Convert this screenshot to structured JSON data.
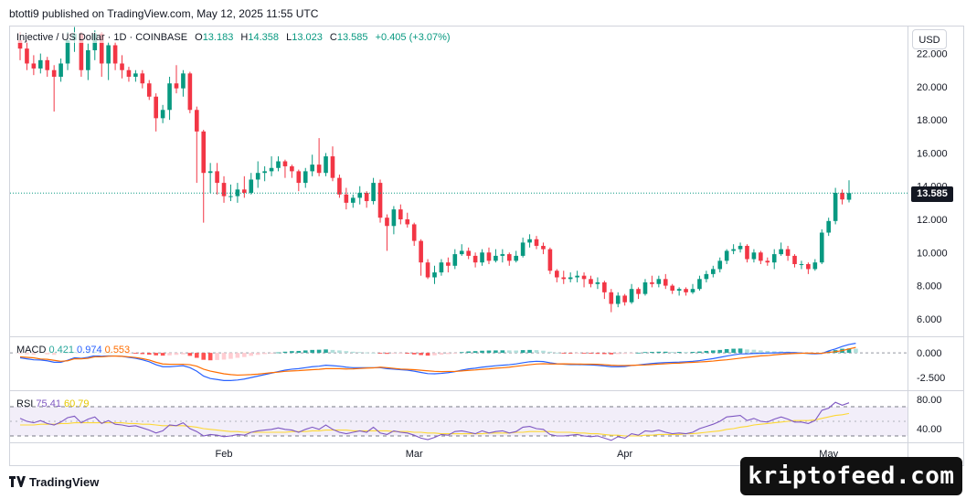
{
  "header": {
    "published": "btotti9 published on TradingView.com, May 12, 2025 11:55 UTC"
  },
  "legend": {
    "symbol": "Injective / US Dollar · 1D · COINBASE",
    "open_label": "O",
    "open": "13.183",
    "high_label": "H",
    "high": "14.358",
    "low_label": "L",
    "low": "13.023",
    "close_label": "C",
    "close": "13.585",
    "change": "+0.405 (+3.07%)"
  },
  "currency_button": "USD",
  "last_price": "13.585",
  "macd_legend": {
    "label": "MACD",
    "hist": "0.421",
    "macd": "0.974",
    "signal": "0.553"
  },
  "rsi_legend": {
    "label": "RSI",
    "rsi": "75.41",
    "ma": "60.79"
  },
  "footer": {
    "brand": "TradingView",
    "watermark": "kriptofeed.com"
  },
  "colors": {
    "up": "#089981",
    "down": "#f23645",
    "macd_line": "#2962ff",
    "signal_line": "#ff6d00",
    "rsi_line": "#7e57c2",
    "rsi_ma": "#fdd835"
  },
  "chart_data": {
    "type": "candlestick",
    "symbol": "Injective / US Dollar",
    "interval": "1D",
    "exchange": "COINBASE",
    "price_axis": {
      "ticks": [
        "22.000",
        "20.000",
        "18.000",
        "16.000",
        "14.000",
        "12.000",
        "10.000",
        "8.000",
        "6.000"
      ],
      "range": [
        5.0,
        23.3
      ]
    },
    "time_axis": [
      "Feb",
      "Mar",
      "Apr",
      "May"
    ],
    "start_date": "2025-01-02",
    "candles": [
      [
        22.8,
        22.3,
        23.3,
        21.6
      ],
      [
        22.3,
        21.4,
        22.8,
        21.0
      ],
      [
        21.4,
        21.1,
        21.9,
        20.7
      ],
      [
        21.1,
        21.6,
        22.0,
        20.8
      ],
      [
        21.6,
        21.0,
        21.8,
        20.6
      ],
      [
        21.0,
        20.6,
        21.3,
        18.5
      ],
      [
        20.6,
        21.4,
        21.7,
        20.3
      ],
      [
        21.4,
        22.8,
        23.3,
        21.0
      ],
      [
        22.8,
        23.2,
        23.6,
        22.1
      ],
      [
        23.2,
        21.0,
        23.3,
        20.6
      ],
      [
        21.0,
        22.2,
        22.6,
        20.4
      ],
      [
        22.2,
        23.2,
        23.4,
        21.6
      ],
      [
        23.2,
        21.4,
        23.3,
        20.6
      ],
      [
        21.4,
        22.5,
        22.7,
        20.4
      ],
      [
        22.5,
        21.4,
        22.7,
        21.0
      ],
      [
        21.4,
        21.0,
        21.9,
        20.5
      ],
      [
        21.0,
        20.6,
        21.2,
        20.3
      ],
      [
        20.6,
        20.8,
        21.0,
        20.3
      ],
      [
        20.8,
        20.2,
        21.0,
        19.9
      ],
      [
        20.2,
        19.4,
        20.4,
        19.2
      ],
      [
        19.4,
        18.1,
        19.6,
        17.3
      ],
      [
        18.1,
        18.6,
        18.9,
        17.8
      ],
      [
        18.6,
        20.2,
        20.6,
        18.0
      ],
      [
        20.2,
        19.9,
        21.3,
        19.6
      ],
      [
        19.9,
        20.8,
        21.0,
        19.4
      ],
      [
        20.8,
        18.6,
        20.9,
        18.4
      ],
      [
        18.6,
        17.3,
        18.8,
        14.2
      ],
      [
        17.3,
        14.8,
        17.4,
        11.8
      ],
      [
        14.8,
        14.9,
        15.4,
        13.6
      ],
      [
        14.9,
        14.2,
        15.4,
        13.5
      ],
      [
        14.2,
        13.4,
        14.6,
        13.0
      ],
      [
        13.4,
        13.4,
        14.1,
        13.1
      ],
      [
        13.4,
        13.8,
        14.2,
        13.0
      ],
      [
        13.8,
        13.6,
        14.6,
        13.3
      ],
      [
        13.6,
        14.4,
        14.8,
        13.5
      ],
      [
        14.4,
        14.8,
        15.5,
        13.9
      ],
      [
        14.8,
        14.9,
        15.2,
        14.3
      ],
      [
        14.9,
        15.1,
        15.8,
        14.6
      ],
      [
        15.1,
        15.5,
        15.8,
        14.9
      ],
      [
        15.5,
        15.2,
        15.6,
        14.5
      ],
      [
        15.2,
        14.9,
        15.3,
        14.5
      ],
      [
        14.9,
        14.2,
        15.0,
        13.7
      ],
      [
        14.2,
        14.9,
        15.1,
        13.9
      ],
      [
        14.9,
        15.3,
        15.9,
        14.6
      ],
      [
        15.3,
        14.8,
        16.9,
        14.6
      ],
      [
        14.8,
        15.8,
        16.0,
        14.6
      ],
      [
        15.8,
        14.5,
        16.4,
        14.3
      ],
      [
        14.5,
        13.5,
        14.7,
        13.3
      ],
      [
        13.5,
        13.0,
        13.9,
        12.6
      ],
      [
        13.0,
        13.3,
        13.5,
        12.7
      ],
      [
        13.3,
        13.6,
        14.0,
        12.9
      ],
      [
        13.6,
        13.1,
        13.7,
        12.7
      ],
      [
        13.1,
        14.2,
        14.5,
        12.9
      ],
      [
        14.2,
        12.1,
        14.4,
        11.8
      ],
      [
        12.1,
        11.6,
        12.3,
        10.1
      ],
      [
        11.6,
        12.6,
        12.8,
        11.1
      ],
      [
        12.6,
        12.0,
        12.9,
        11.7
      ],
      [
        12.0,
        11.7,
        12.4,
        11.5
      ],
      [
        11.7,
        10.7,
        11.8,
        10.4
      ],
      [
        10.7,
        9.4,
        10.8,
        8.6
      ],
      [
        9.4,
        8.5,
        9.6,
        8.4
      ],
      [
        8.5,
        8.8,
        9.2,
        8.1
      ],
      [
        8.8,
        9.4,
        9.6,
        8.6
      ],
      [
        9.4,
        9.2,
        9.7,
        8.8
      ],
      [
        9.2,
        9.9,
        10.2,
        9.0
      ],
      [
        9.9,
        10.1,
        10.5,
        9.8
      ],
      [
        10.1,
        9.8,
        10.3,
        9.6
      ],
      [
        9.8,
        9.4,
        10.0,
        9.1
      ],
      [
        9.4,
        10.0,
        10.2,
        9.2
      ],
      [
        10.0,
        9.5,
        10.3,
        9.3
      ],
      [
        9.5,
        9.8,
        10.2,
        9.4
      ],
      [
        9.8,
        9.9,
        10.2,
        9.4
      ],
      [
        9.9,
        9.5,
        10.0,
        9.2
      ],
      [
        9.5,
        9.8,
        10.1,
        9.4
      ],
      [
        9.8,
        10.6,
        10.9,
        9.7
      ],
      [
        10.6,
        10.8,
        11.1,
        10.3
      ],
      [
        10.8,
        10.4,
        11.0,
        10.2
      ],
      [
        10.4,
        10.2,
        10.6,
        9.9
      ],
      [
        10.2,
        8.9,
        10.3,
        8.7
      ],
      [
        8.9,
        8.5,
        9.0,
        8.2
      ],
      [
        8.5,
        8.4,
        8.9,
        8.1
      ],
      [
        8.4,
        8.5,
        8.8,
        8.2
      ],
      [
        8.5,
        8.6,
        8.9,
        8.2
      ],
      [
        8.6,
        8.4,
        8.8,
        7.9
      ],
      [
        8.4,
        8.1,
        8.6,
        7.9
      ],
      [
        8.1,
        8.2,
        8.5,
        7.8
      ],
      [
        8.2,
        7.6,
        8.3,
        7.2
      ],
      [
        7.6,
        6.9,
        7.8,
        6.4
      ],
      [
        6.9,
        7.4,
        7.6,
        6.7
      ],
      [
        7.4,
        7.0,
        7.5,
        6.8
      ],
      [
        7.0,
        7.8,
        8.1,
        6.9
      ],
      [
        7.8,
        7.5,
        7.9,
        7.2
      ],
      [
        7.5,
        8.2,
        8.4,
        7.4
      ],
      [
        8.2,
        8.1,
        8.6,
        7.9
      ],
      [
        8.1,
        8.4,
        8.6,
        7.9
      ],
      [
        8.4,
        8.0,
        8.7,
        7.8
      ],
      [
        8.0,
        7.7,
        8.1,
        7.5
      ],
      [
        7.7,
        7.8,
        7.9,
        7.4
      ],
      [
        7.8,
        7.6,
        7.9,
        7.4
      ],
      [
        7.6,
        7.8,
        8.1,
        7.5
      ],
      [
        7.8,
        8.4,
        8.6,
        7.7
      ],
      [
        8.4,
        8.7,
        8.9,
        8.2
      ],
      [
        8.7,
        9.0,
        9.2,
        8.5
      ],
      [
        9.0,
        9.5,
        9.7,
        8.8
      ],
      [
        9.5,
        10.1,
        10.2,
        9.3
      ],
      [
        10.1,
        10.2,
        10.5,
        9.9
      ],
      [
        10.2,
        10.4,
        10.6,
        10.0
      ],
      [
        10.4,
        9.6,
        10.5,
        9.4
      ],
      [
        9.6,
        10.0,
        10.2,
        9.4
      ],
      [
        10.0,
        9.5,
        10.1,
        9.3
      ],
      [
        9.5,
        9.4,
        9.7,
        9.2
      ],
      [
        9.4,
        9.9,
        10.2,
        9.0
      ],
      [
        9.9,
        10.2,
        10.6,
        9.8
      ],
      [
        10.2,
        9.8,
        10.4,
        9.5
      ],
      [
        9.8,
        9.3,
        9.9,
        9.1
      ],
      [
        9.3,
        9.3,
        9.5,
        9.0
      ],
      [
        9.3,
        9.0,
        9.4,
        8.7
      ],
      [
        9.0,
        9.4,
        9.6,
        8.9
      ],
      [
        9.4,
        11.2,
        11.4,
        9.3
      ],
      [
        11.2,
        11.9,
        12.1,
        11.0
      ],
      [
        11.9,
        13.6,
        13.9,
        11.7
      ],
      [
        13.6,
        13.2,
        13.8,
        12.9
      ],
      [
        13.183,
        13.585,
        14.358,
        13.023
      ]
    ],
    "macd": {
      "axis_ticks": [
        "0.000",
        "-2.500"
      ],
      "range": [
        -3.6,
        1.4
      ],
      "histogram": [
        -0.1,
        -0.15,
        -0.2,
        -0.1,
        -0.15,
        -0.2,
        -0.1,
        0.05,
        0.1,
        0.05,
        0.1,
        0.12,
        0.05,
        0.06,
        0.02,
        0.0,
        -0.05,
        -0.08,
        -0.12,
        -0.18,
        -0.25,
        -0.28,
        -0.25,
        -0.2,
        -0.15,
        -0.3,
        -0.5,
        -0.7,
        -0.75,
        -0.72,
        -0.68,
        -0.6,
        -0.5,
        -0.42,
        -0.3,
        -0.2,
        -0.12,
        -0.05,
        0.05,
        0.12,
        0.18,
        0.2,
        0.25,
        0.3,
        0.32,
        0.35,
        0.3,
        0.25,
        0.18,
        0.12,
        0.08,
        0.04,
        0.02,
        -0.05,
        -0.1,
        -0.08,
        -0.06,
        -0.08,
        -0.15,
        -0.22,
        -0.28,
        -0.25,
        -0.18,
        -0.12,
        -0.02,
        0.08,
        0.15,
        0.18,
        0.22,
        0.24,
        0.25,
        0.26,
        0.25,
        0.24,
        0.28,
        0.3,
        0.28,
        0.22,
        0.12,
        0.02,
        -0.04,
        -0.06,
        -0.05,
        -0.06,
        -0.08,
        -0.1,
        -0.12,
        -0.15,
        -0.12,
        -0.1,
        -0.02,
        0.02,
        0.08,
        0.1,
        0.12,
        0.12,
        0.1,
        0.1,
        0.09,
        0.1,
        0.14,
        0.2,
        0.25,
        0.3,
        0.38,
        0.42,
        0.44,
        0.35,
        0.32,
        0.25,
        0.2,
        0.16,
        0.15,
        0.13,
        0.08,
        0.02,
        -0.04,
        -0.06,
        -0.02,
        0.15,
        0.28,
        0.42,
        0.45,
        0.421
      ],
      "macd_line": [
        -0.5,
        -0.6,
        -0.7,
        -0.72,
        -0.8,
        -0.95,
        -0.95,
        -0.75,
        -0.5,
        -0.55,
        -0.45,
        -0.28,
        -0.35,
        -0.28,
        -0.3,
        -0.35,
        -0.45,
        -0.55,
        -0.7,
        -0.9,
        -1.2,
        -1.4,
        -1.4,
        -1.35,
        -1.3,
        -1.5,
        -1.85,
        -2.35,
        -2.6,
        -2.7,
        -2.8,
        -2.8,
        -2.75,
        -2.65,
        -2.5,
        -2.35,
        -2.2,
        -2.05,
        -1.9,
        -1.75,
        -1.65,
        -1.6,
        -1.5,
        -1.4,
        -1.35,
        -1.25,
        -1.3,
        -1.35,
        -1.45,
        -1.5,
        -1.5,
        -1.5,
        -1.5,
        -1.5,
        -1.6,
        -1.65,
        -1.7,
        -1.75,
        -1.85,
        -1.98,
        -2.1,
        -2.12,
        -2.08,
        -2.0,
        -1.9,
        -1.75,
        -1.62,
        -1.55,
        -1.45,
        -1.38,
        -1.3,
        -1.25,
        -1.2,
        -1.12,
        -1.0,
        -0.9,
        -0.85,
        -0.88,
        -1.0,
        -1.1,
        -1.15,
        -1.18,
        -1.18,
        -1.2,
        -1.22,
        -1.26,
        -1.32,
        -1.4,
        -1.4,
        -1.38,
        -1.28,
        -1.22,
        -1.14,
        -1.08,
        -1.02,
        -0.98,
        -0.96,
        -0.94,
        -0.9,
        -0.86,
        -0.78,
        -0.68,
        -0.58,
        -0.45,
        -0.32,
        -0.2,
        -0.1,
        -0.1,
        -0.06,
        -0.05,
        -0.02,
        0.0,
        0.02,
        0.04,
        0.02,
        -0.02,
        -0.06,
        -0.1,
        -0.06,
        0.2,
        0.4,
        0.65,
        0.85,
        0.974
      ],
      "signal_line": [
        -0.4,
        -0.45,
        -0.5,
        -0.62,
        -0.65,
        -0.75,
        -0.85,
        -0.8,
        -0.6,
        -0.6,
        -0.55,
        -0.4,
        -0.4,
        -0.34,
        -0.32,
        -0.35,
        -0.4,
        -0.47,
        -0.58,
        -0.72,
        -0.95,
        -1.12,
        -1.15,
        -1.15,
        -1.15,
        -1.2,
        -1.35,
        -1.65,
        -1.85,
        -1.98,
        -2.12,
        -2.2,
        -2.25,
        -2.23,
        -2.2,
        -2.15,
        -2.08,
        -2.0,
        -1.95,
        -1.87,
        -1.83,
        -1.8,
        -1.75,
        -1.7,
        -1.67,
        -1.6,
        -1.6,
        -1.6,
        -1.63,
        -1.62,
        -1.58,
        -1.54,
        -1.52,
        -1.45,
        -1.5,
        -1.57,
        -1.64,
        -1.67,
        -1.7,
        -1.76,
        -1.82,
        -1.87,
        -1.9,
        -1.88,
        -1.88,
        -1.83,
        -1.77,
        -1.73,
        -1.67,
        -1.62,
        -1.55,
        -1.51,
        -1.45,
        -1.36,
        -1.28,
        -1.2,
        -1.13,
        -1.1,
        -1.12,
        -1.12,
        -1.11,
        -1.12,
        -1.13,
        -1.14,
        -1.14,
        -1.16,
        -1.2,
        -1.25,
        -1.28,
        -1.28,
        -1.26,
        -1.24,
        -1.22,
        -1.18,
        -1.14,
        -1.1,
        -1.06,
        -1.04,
        -0.99,
        -0.96,
        -0.92,
        -0.88,
        -0.83,
        -0.75,
        -0.7,
        -0.62,
        -0.54,
        -0.45,
        -0.38,
        -0.3,
        -0.27,
        -0.2,
        -0.14,
        -0.09,
        -0.06,
        -0.04,
        -0.02,
        -0.04,
        -0.04,
        0.05,
        0.12,
        0.23,
        0.4,
        0.553
      ]
    },
    "rsi": {
      "axis_ticks": [
        "80.00",
        "40.00"
      ],
      "range": [
        25,
        90
      ],
      "upper_band": 70,
      "middle_band": 50,
      "lower_band": 30,
      "rsi_line": [
        54,
        50,
        48,
        51,
        47,
        45,
        49,
        55,
        57,
        48,
        53,
        56,
        47,
        51,
        46,
        45,
        43,
        44,
        41,
        38,
        34,
        37,
        45,
        44,
        48,
        40,
        36,
        30,
        32,
        31,
        29,
        30,
        32,
        31,
        35,
        37,
        38,
        39,
        41,
        39,
        38,
        35,
        39,
        42,
        39,
        45,
        39,
        35,
        33,
        35,
        37,
        35,
        42,
        34,
        32,
        37,
        35,
        34,
        31,
        27,
        25,
        28,
        32,
        31,
        36,
        37,
        35,
        33,
        37,
        34,
        36,
        37,
        34,
        36,
        42,
        43,
        40,
        39,
        32,
        30,
        30,
        31,
        32,
        30,
        29,
        30,
        27,
        24,
        29,
        27,
        33,
        31,
        37,
        36,
        38,
        35,
        33,
        34,
        33,
        35,
        40,
        43,
        46,
        50,
        56,
        57,
        58,
        51,
        54,
        50,
        49,
        53,
        56,
        53,
        49,
        49,
        47,
        51,
        65,
        68,
        76,
        72,
        75.41
      ],
      "rsi_ma": [
        45,
        45,
        45,
        46,
        46,
        46,
        47,
        47,
        48,
        48,
        48,
        48,
        48,
        48,
        48,
        48,
        47,
        47,
        46,
        46,
        45,
        44,
        44,
        44,
        44,
        43,
        42,
        40,
        39,
        38,
        37,
        36,
        36,
        35,
        35,
        35,
        35,
        35,
        35,
        35,
        36,
        36,
        36,
        37,
        37,
        38,
        38,
        38,
        38,
        37,
        37,
        37,
        37,
        37,
        37,
        36,
        36,
        36,
        35,
        35,
        34,
        34,
        33,
        33,
        33,
        33,
        33,
        33,
        33,
        34,
        34,
        34,
        34,
        35,
        35,
        36,
        36,
        36,
        36,
        35,
        35,
        35,
        34,
        34,
        33,
        33,
        32,
        31,
        31,
        30,
        30,
        30,
        31,
        31,
        32,
        32,
        32,
        32,
        33,
        33,
        34,
        35,
        36,
        37,
        39,
        40,
        42,
        43,
        45,
        46,
        47,
        48,
        49,
        50,
        51,
        51,
        51,
        52,
        54,
        56,
        58,
        59,
        60.79
      ]
    }
  }
}
